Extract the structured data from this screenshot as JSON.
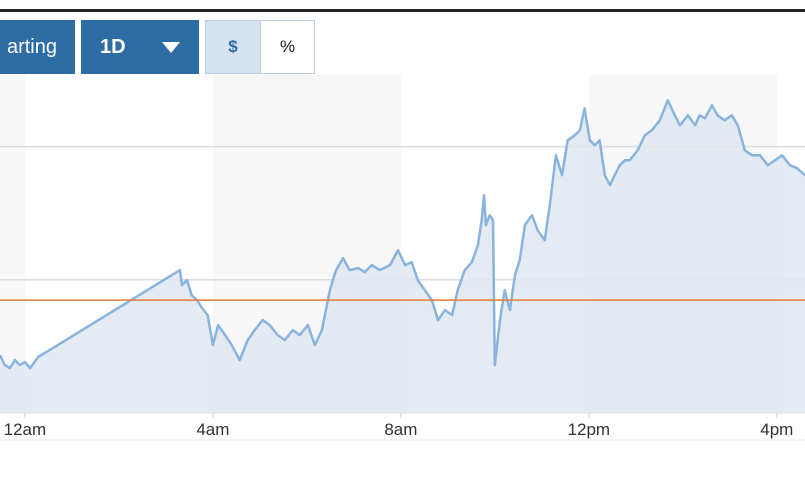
{
  "controls": {
    "chart_type_button": "arting",
    "range_button": "1D",
    "unit_options": [
      "$",
      "%"
    ]
  },
  "chart_data": {
    "type": "area-line",
    "x": [
      -0.53,
      -0.43,
      -0.32,
      -0.21,
      -0.11,
      0,
      0.11,
      0.28,
      3.3,
      3.34,
      3.45,
      3.55,
      3.66,
      3.77,
      3.89,
      4.0,
      4.11,
      4.26,
      4.4,
      4.57,
      4.74,
      4.89,
      5.06,
      5.21,
      5.38,
      5.53,
      5.7,
      5.85,
      6.02,
      6.17,
      6.32,
      6.49,
      6.62,
      6.77,
      6.91,
      7.09,
      7.23,
      7.38,
      7.55,
      7.77,
      7.94,
      8.09,
      8.23,
      8.36,
      8.51,
      8.66,
      8.79,
      8.94,
      9.09,
      9.21,
      9.36,
      9.51,
      9.64,
      9.72,
      9.77,
      9.81,
      9.89,
      9.96,
      10.0,
      10.11,
      10.21,
      10.32,
      10.43,
      10.53,
      10.64,
      10.79,
      10.91,
      11.06,
      11.17,
      11.3,
      11.43,
      11.55,
      11.7,
      11.81,
      11.91,
      12.02,
      12.13,
      12.23,
      12.34,
      12.45,
      12.55,
      12.66,
      12.77,
      12.87,
      13.04,
      13.19,
      13.34,
      13.51,
      13.68,
      13.83,
      13.94,
      14.11,
      14.26,
      14.36,
      14.47,
      14.62,
      14.74,
      14.89,
      15.04,
      15.17,
      15.32,
      15.47,
      15.64,
      15.81,
      15.96,
      16.11,
      16.28,
      16.43,
      16.6
    ],
    "values": [
      17.4,
      14.4,
      13.5,
      15.9,
      14.4,
      15.3,
      13.5,
      16.8,
      42.9,
      38.4,
      39.9,
      35.4,
      33.9,
      31.5,
      29.4,
      20.4,
      26.4,
      23.4,
      20.4,
      15.9,
      21.9,
      24.9,
      27.9,
      26.4,
      23.4,
      21.9,
      24.9,
      23.4,
      26.4,
      20.4,
      24.9,
      36.9,
      42.9,
      46.5,
      42.9,
      43.5,
      42.3,
      44.4,
      42.9,
      44.4,
      48.9,
      44.4,
      45.3,
      39.9,
      36.9,
      33.9,
      27.9,
      30.9,
      29.4,
      36.9,
      42.9,
      45.3,
      50.4,
      57.9,
      65.4,
      56.4,
      59.4,
      57.9,
      14.4,
      27.9,
      36.9,
      30.9,
      41.4,
      45.9,
      56.4,
      59.4,
      54.9,
      51.9,
      62.4,
      77.4,
      71.4,
      81.9,
      83.4,
      84.9,
      91.5,
      81.9,
      80.4,
      81.9,
      71.4,
      68.4,
      71.4,
      74.4,
      75.9,
      75.9,
      78.9,
      83.4,
      84.9,
      87.9,
      93.9,
      89.4,
      86.4,
      89.4,
      86.4,
      89.4,
      88.5,
      92.4,
      89.4,
      87.9,
      89.4,
      86.4,
      78.9,
      77.4,
      77.4,
      74.4,
      75.9,
      77.4,
      74.4,
      73.5,
      71.4
    ],
    "color": "#8ab4e0",
    "fill_color": "#dfe8f0",
    "xlim": [
      -0.53,
      16.6
    ],
    "ylim": [
      0,
      100
    ],
    "xticks": [
      {
        "value": 0,
        "label": "12am"
      },
      {
        "value": 4,
        "label": "4am"
      },
      {
        "value": 8,
        "label": "8am"
      },
      {
        "value": 12,
        "label": "12pm"
      },
      {
        "value": 16,
        "label": "4pm"
      }
    ],
    "grid_values": [
      40,
      80
    ],
    "reference_line": {
      "value": 33.9,
      "color": "#e07b39"
    }
  }
}
